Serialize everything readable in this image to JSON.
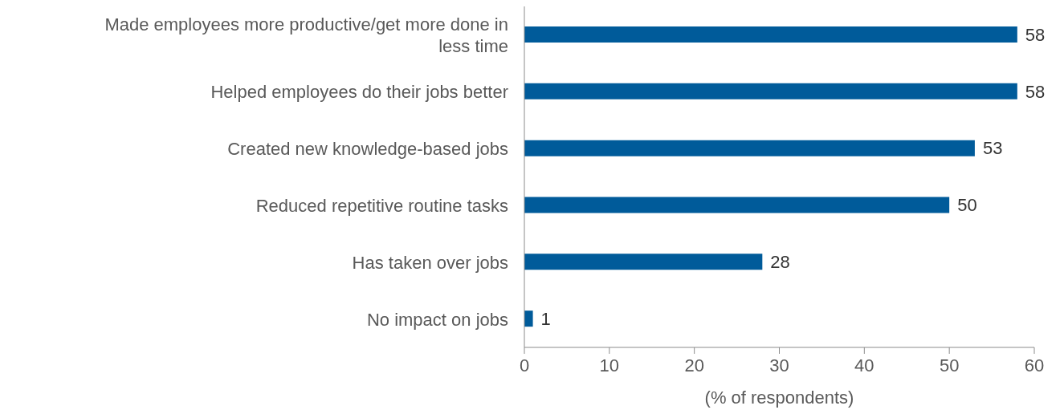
{
  "chart_data": {
    "type": "bar",
    "orientation": "horizontal",
    "xlabel": "(% of respondents)",
    "categories": [
      "Made employees more productive/get more done in less time",
      "Helped employees do their jobs better",
      "Created new knowledge-based jobs",
      "Reduced repetitive routine tasks",
      "Has taken over jobs",
      "No impact on jobs"
    ],
    "values": [
      58,
      58,
      53,
      50,
      28,
      1
    ],
    "color": "#005b9a",
    "xlim": [
      0,
      60
    ],
    "xticks": [
      0,
      10,
      20,
      30,
      40,
      50,
      60
    ],
    "grid": false,
    "data_labels": true
  }
}
